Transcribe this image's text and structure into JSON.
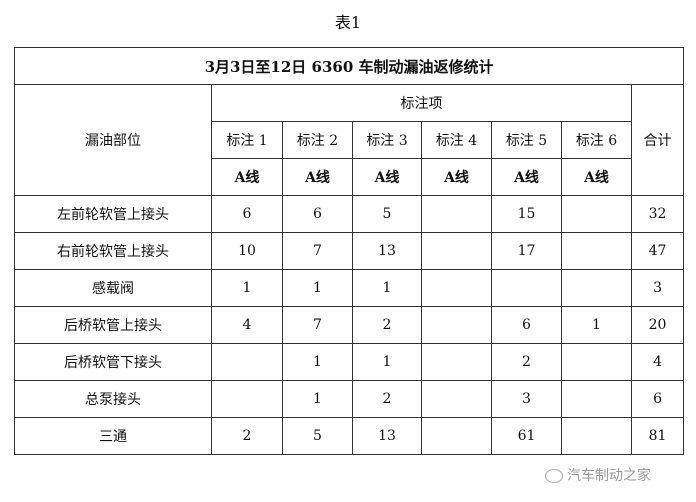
{
  "caption": "表1",
  "table": {
    "title": "3月3日至12日 6360 车制动漏油返修统计",
    "row_header": "漏油部位",
    "group_header": "标注项",
    "total_header": "合计",
    "columns": [
      "标注 1",
      "标注 2",
      "标注 3",
      "标注 4",
      "标注 5",
      "标注 6"
    ],
    "sublabels": [
      "A线",
      "A线",
      "A线",
      "A线",
      "A线",
      "A线"
    ],
    "rows": [
      {
        "name": "左前轮软管上接头",
        "values": [
          "6",
          "6",
          "5",
          "",
          "15",
          ""
        ],
        "total": "32"
      },
      {
        "name": "右前轮软管上接头",
        "values": [
          "10",
          "7",
          "13",
          "",
          "17",
          ""
        ],
        "total": "47"
      },
      {
        "name": "感载阀",
        "values": [
          "1",
          "1",
          "1",
          "",
          "",
          ""
        ],
        "total": "3"
      },
      {
        "name": "后桥软管上接头",
        "values": [
          "4",
          "7",
          "2",
          "",
          "6",
          "1"
        ],
        "total": "20"
      },
      {
        "name": "后桥软管下接头",
        "values": [
          "",
          "1",
          "1",
          "",
          "2",
          ""
        ],
        "total": "4"
      },
      {
        "name": "总泵接头",
        "values": [
          "",
          "1",
          "2",
          "",
          "3",
          ""
        ],
        "total": "6"
      },
      {
        "name": "三通",
        "values": [
          "2",
          "5",
          "13",
          "",
          "61",
          ""
        ],
        "total": "81"
      }
    ]
  },
  "watermark": {
    "text": "汽车制动之家",
    "icon": "wechat-icon"
  }
}
